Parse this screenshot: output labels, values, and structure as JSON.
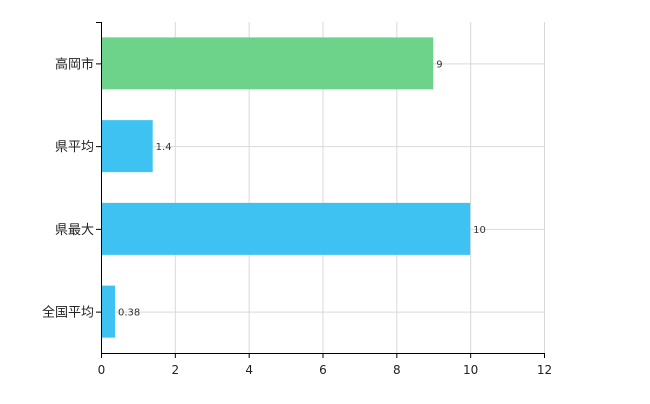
{
  "chart_data": {
    "type": "bar",
    "orientation": "horizontal",
    "categories": [
      "高岡市",
      "県平均",
      "県最大",
      "全国平均"
    ],
    "values": [
      9,
      1.4,
      10,
      0.38
    ],
    "value_labels": [
      "9",
      "1.4",
      "10",
      "0.38"
    ],
    "bar_colors": [
      "#6dd38b",
      "#3ec2f1",
      "#3ec2f1",
      "#3ec2f1"
    ],
    "xlim": [
      0,
      12
    ],
    "xticks": [
      0,
      2,
      4,
      6,
      8,
      10,
      12
    ],
    "xtick_labels": [
      "0",
      "2",
      "4",
      "6",
      "8",
      "10",
      "12"
    ],
    "grid": true,
    "legend": "none",
    "title": "",
    "xlabel": "",
    "ylabel": ""
  },
  "colors": {
    "highlight_bar": "#6dd38b",
    "comparison_bar": "#3ec2f1",
    "grid": "#d9d9d9",
    "axis": "#000000"
  }
}
